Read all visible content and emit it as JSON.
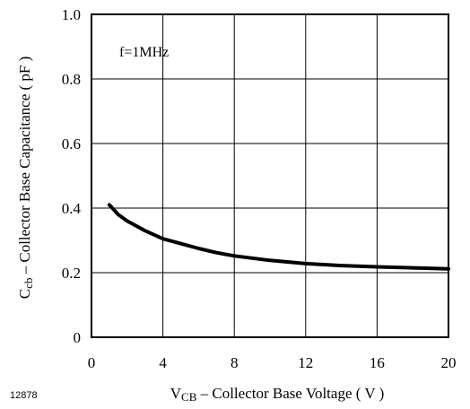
{
  "chart_data": {
    "type": "line",
    "annotation": "f=1MHz",
    "figure_id": "12878",
    "xlabel": {
      "symbol": "V",
      "subscript": "CB",
      "text": " – Collector Base Voltage ( V )"
    },
    "ylabel": {
      "symbol": "C",
      "subscript": "cb",
      "text": " – Collector Base Capacitance ( pF )"
    },
    "xlim": [
      0,
      20
    ],
    "ylim": [
      0,
      1.0
    ],
    "x_ticks": [
      0,
      4,
      8,
      12,
      16,
      20
    ],
    "y_ticks": [
      0,
      0.2,
      0.4,
      0.6,
      0.8,
      1.0
    ],
    "x_tick_labels": [
      "0",
      "4",
      "8",
      "12",
      "16",
      "20"
    ],
    "y_tick_labels": [
      "0",
      "0.2",
      "0.4",
      "0.6",
      "0.8",
      "1.0"
    ],
    "grid": true,
    "line_color": "#000000",
    "series": [
      {
        "x": [
          1,
          1.5,
          2,
          3,
          4,
          5,
          6,
          7,
          8,
          10,
          12,
          14,
          16,
          18,
          20
        ],
        "y": [
          0.41,
          0.38,
          0.36,
          0.33,
          0.305,
          0.29,
          0.275,
          0.262,
          0.252,
          0.238,
          0.228,
          0.222,
          0.218,
          0.215,
          0.212
        ]
      }
    ]
  }
}
